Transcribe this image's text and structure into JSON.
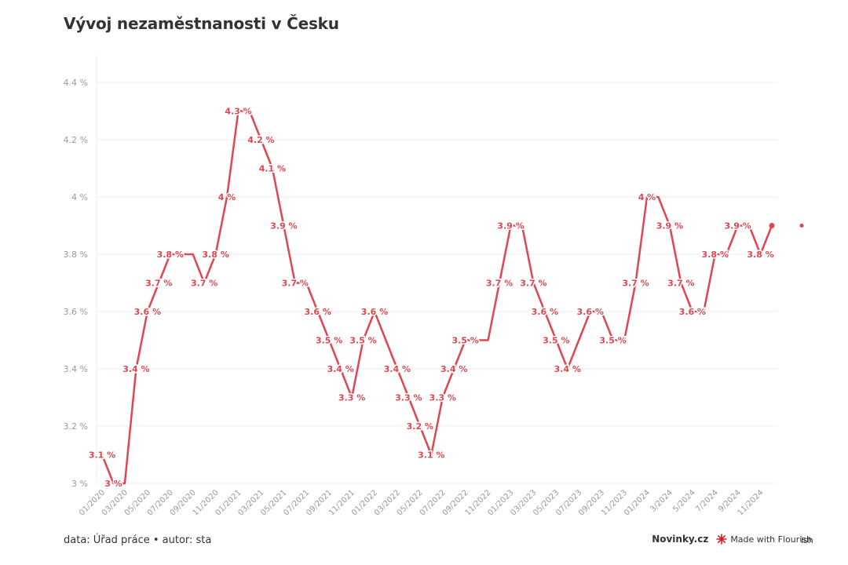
{
  "title": "Vývoj nezaměstnanosti v Česku",
  "footer": {
    "source": "data: Úřad práce • autor: sta",
    "brand": "Novinky.cz",
    "made_with": "Made with Flourish",
    "clipped_text": "ish"
  },
  "colors": {
    "line": "#e0464f",
    "grid": "#ececec",
    "axis_text": "#9a9a9a"
  },
  "chart_data": {
    "type": "line",
    "title": "Vývoj nezaměstnanosti v Česku",
    "xlabel": "",
    "ylabel": "",
    "ylim": [
      3.0,
      4.4
    ],
    "yticks": [
      3.0,
      3.2,
      3.4,
      3.6,
      3.8,
      4.0,
      4.2,
      4.4
    ],
    "ytick_labels": [
      "3 %",
      "3.2 %",
      "3.4 %",
      "3.6 %",
      "3.8 %",
      "4 %",
      "4.2 %",
      "4.4 %"
    ],
    "grid": true,
    "legend": "none",
    "xtick_labels": [
      {
        "i": 0,
        "label": "01/2020"
      },
      {
        "i": 2,
        "label": "03/2020"
      },
      {
        "i": 4,
        "label": "05/2020"
      },
      {
        "i": 6,
        "label": "07/2020"
      },
      {
        "i": 8,
        "label": "09/2020"
      },
      {
        "i": 10,
        "label": "11/2020"
      },
      {
        "i": 12,
        "label": "01/2021"
      },
      {
        "i": 14,
        "label": "03/2021"
      },
      {
        "i": 16,
        "label": "05/2021"
      },
      {
        "i": 18,
        "label": "07/2021"
      },
      {
        "i": 20,
        "label": "09/2021"
      },
      {
        "i": 22,
        "label": "11/2021"
      },
      {
        "i": 24,
        "label": "01/2022"
      },
      {
        "i": 26,
        "label": "03/2022"
      },
      {
        "i": 28,
        "label": "05/2022"
      },
      {
        "i": 30,
        "label": "07/2022"
      },
      {
        "i": 32,
        "label": "09/2022"
      },
      {
        "i": 34,
        "label": "11/2022"
      },
      {
        "i": 36,
        "label": "01/2023"
      },
      {
        "i": 38,
        "label": "03/2023"
      },
      {
        "i": 40,
        "label": "05/2023"
      },
      {
        "i": 42,
        "label": "07/2023"
      },
      {
        "i": 44,
        "label": "09/2023"
      },
      {
        "i": 46,
        "label": "11/2023"
      },
      {
        "i": 48,
        "label": "01/2024"
      },
      {
        "i": 50,
        "label": "3/2024"
      },
      {
        "i": 52,
        "label": "5/2024"
      },
      {
        "i": 54,
        "label": "7/2024"
      },
      {
        "i": 56,
        "label": "9/2024"
      },
      {
        "i": 58,
        "label": "11/2024"
      }
    ],
    "series": [
      {
        "values": [
          3.1,
          3.0,
          3.0,
          3.4,
          3.6,
          3.7,
          3.8,
          3.8,
          3.8,
          3.7,
          3.8,
          4.0,
          4.3,
          4.3,
          4.2,
          4.1,
          3.9,
          3.7,
          3.7,
          3.6,
          3.5,
          3.4,
          3.3,
          3.5,
          3.6,
          3.5,
          3.4,
          3.3,
          3.2,
          3.1,
          3.3,
          3.4,
          3.5,
          3.5,
          3.5,
          3.7,
          3.9,
          3.9,
          3.7,
          3.6,
          3.5,
          3.4,
          3.5,
          3.6,
          3.6,
          3.5,
          3.5,
          3.7,
          4.0,
          4.0,
          3.9,
          3.7,
          3.6,
          3.6,
          3.8,
          3.8,
          3.9,
          3.9,
          3.8,
          3.9
        ],
        "data_labels": [
          {
            "i": 0,
            "text": "3.1 %"
          },
          {
            "i": 1,
            "text": "3 %"
          },
          {
            "i": 3,
            "text": "3.4 %"
          },
          {
            "i": 4,
            "text": "3.6 %"
          },
          {
            "i": 5,
            "text": "3.7 %"
          },
          {
            "i": 6,
            "text": "3.8 %"
          },
          {
            "i": 9,
            "text": "3.7 %"
          },
          {
            "i": 10,
            "text": "3.8 %"
          },
          {
            "i": 11,
            "text": "4 %"
          },
          {
            "i": 12,
            "text": "4.3 %"
          },
          {
            "i": 14,
            "text": "4.2 %"
          },
          {
            "i": 15,
            "text": "4.1 %"
          },
          {
            "i": 16,
            "text": "3.9 %"
          },
          {
            "i": 17,
            "text": "3.7 %"
          },
          {
            "i": 19,
            "text": "3.6 %"
          },
          {
            "i": 20,
            "text": "3.5 %"
          },
          {
            "i": 21,
            "text": "3.4 %"
          },
          {
            "i": 22,
            "text": "3.3 %"
          },
          {
            "i": 23,
            "text": "3.5 %"
          },
          {
            "i": 24,
            "text": "3.6 %"
          },
          {
            "i": 26,
            "text": "3.4 %"
          },
          {
            "i": 27,
            "text": "3.3 %"
          },
          {
            "i": 28,
            "text": "3.2 %"
          },
          {
            "i": 29,
            "text": "3.1 %"
          },
          {
            "i": 30,
            "text": "3.3 %"
          },
          {
            "i": 31,
            "text": "3.4 %"
          },
          {
            "i": 32,
            "text": "3.5 %"
          },
          {
            "i": 35,
            "text": "3.7 %"
          },
          {
            "i": 36,
            "text": "3.9 %"
          },
          {
            "i": 38,
            "text": "3.7 %"
          },
          {
            "i": 39,
            "text": "3.6 %"
          },
          {
            "i": 40,
            "text": "3.5 %"
          },
          {
            "i": 41,
            "text": "3.4 %"
          },
          {
            "i": 43,
            "text": "3.6 %"
          },
          {
            "i": 45,
            "text": "3.5 %"
          },
          {
            "i": 47,
            "text": "3.7 %"
          },
          {
            "i": 48,
            "text": "4 %"
          },
          {
            "i": 50,
            "text": "3.9 %"
          },
          {
            "i": 51,
            "text": "3.7 %"
          },
          {
            "i": 52,
            "text": "3.6 %"
          },
          {
            "i": 54,
            "text": "3.8 %"
          },
          {
            "i": 56,
            "text": "3.9 %"
          },
          {
            "i": 58,
            "text": "3.8 %"
          }
        ]
      }
    ]
  }
}
